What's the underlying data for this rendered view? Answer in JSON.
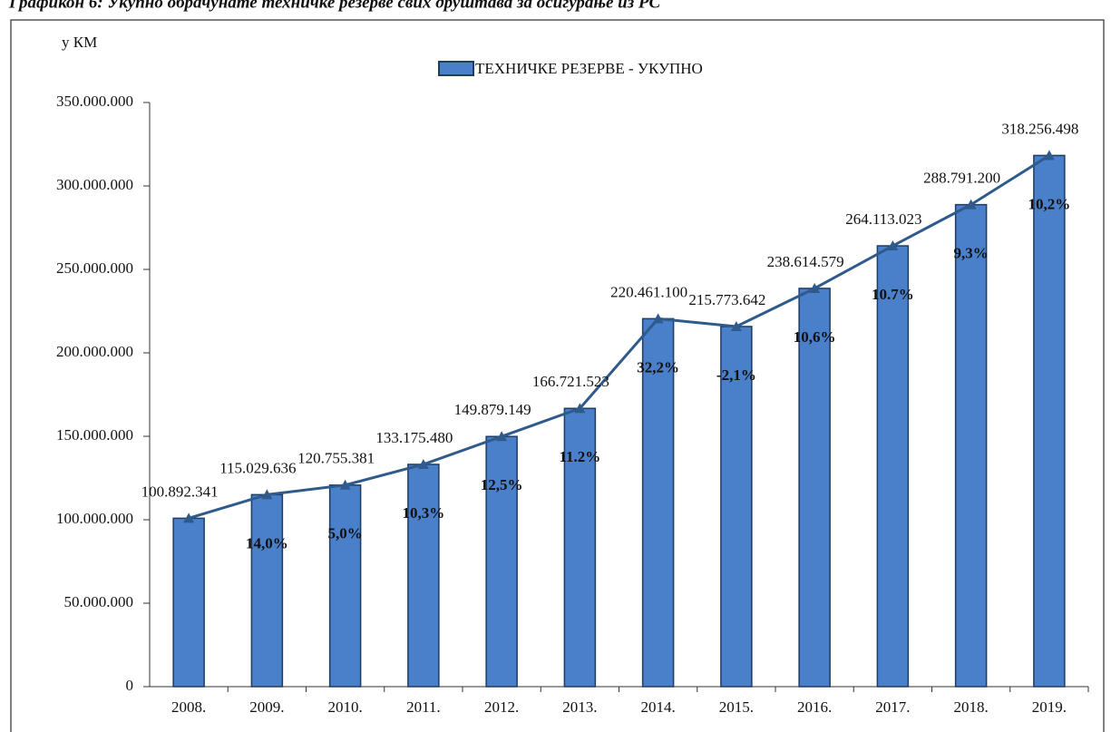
{
  "chart_data": {
    "type": "bar",
    "title": "Графикон 6: Укупно обрачунате техничке резерве свих друштава за осигурање из РС",
    "y_label": "у КМ",
    "categories": [
      "2008.",
      "2009.",
      "2010.",
      "2011.",
      "2012.",
      "2013.",
      "2014.",
      "2015.",
      "2016.",
      "2017.",
      "2018.",
      "2019."
    ],
    "series": [
      {
        "name": "ТЕХНИЧКЕ РЕЗЕРВЕ - УКУПНО",
        "color": "#4a7fc9",
        "values": [
          100892341,
          115029636,
          120755381,
          133175480,
          149879149,
          166721523,
          220461100,
          215773642,
          238614579,
          264113023,
          288791200,
          318256498
        ],
        "value_labels": [
          "100.892.341",
          "115.029.636",
          "120.755.381",
          "133.175.480",
          "149.879.149",
          "166.721.523",
          "220.461.100",
          "215.773.642",
          "238.614.579",
          "264.113.023",
          "288.791.200",
          "318.256.498"
        ]
      }
    ],
    "line_color": "#2e5a8c",
    "growth_labels": [
      null,
      "14,0%",
      "5,0%",
      "10,3%",
      "12,5%",
      "11.2%",
      "32,2%",
      "-2,1%",
      "10,6%",
      "10.7%",
      "9,3%",
      "10,2%"
    ],
    "ylim": [
      0,
      350000000
    ],
    "yticks": [
      0,
      {
        "value": 50000000,
        "label": "50.000.000"
      },
      {
        "value": 100000000,
        "label": "100.000.000"
      },
      {
        "value": 150000000,
        "label": "150.000.000"
      },
      {
        "value": 200000000,
        "label": "200.000.000"
      },
      {
        "value": 250000000,
        "label": "250.000.000"
      },
      {
        "value": 300000000,
        "label": "300.000.000"
      },
      {
        "value": 350000000,
        "label": "350.000.000"
      }
    ],
    "legend": "top"
  }
}
